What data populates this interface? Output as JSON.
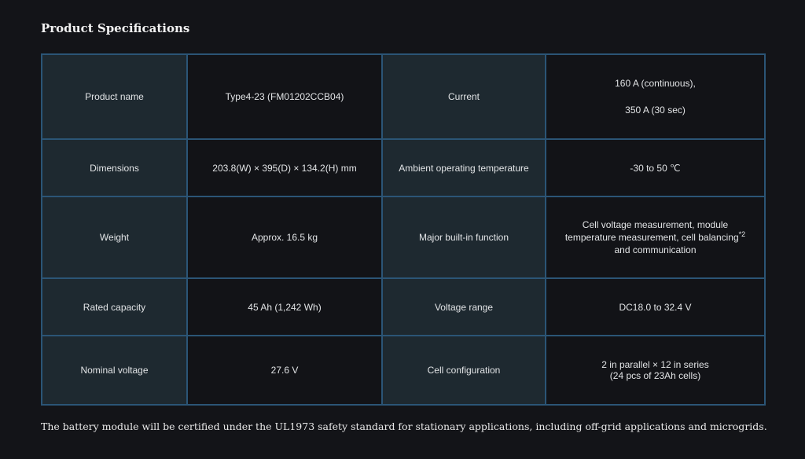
{
  "title": "Product Specifications",
  "rows": [
    {
      "l1": "Product name",
      "v1": "Type4-23 (FM01202CCB04)",
      "l2": "Current",
      "v2a": "160 A (continuous),",
      "v2b": "350 A (30 sec)"
    },
    {
      "l1": "Dimensions",
      "v1": "203.8(W) × 395(D) × 134.2(H) mm",
      "l2": "Ambient operating temperature",
      "v2": "-30 to 50 ℃"
    },
    {
      "l1": "Weight",
      "v1": "Approx. 16.5 kg",
      "l2": "Major built-in function",
      "v2a": "Cell voltage measurement, module temperature measurement, cell balancing",
      "v2sup": "*2",
      "v2b": "and communication"
    },
    {
      "l1": "Rated capacity",
      "v1": "45 Ah (1,242 Wh)",
      "l2": "Voltage range",
      "v2": "DC18.0 to 32.4 V"
    },
    {
      "l1": "Nominal voltage",
      "v1": "27.6 V",
      "l2": "Cell configuration",
      "v2a": "2 in parallel × 12 in series",
      "v2b": "(24 pcs of 23Ah cells)"
    }
  ],
  "footnote": "The battery module will be certified under the UL1973 safety standard for stationary applications, including off-grid applications and microgrids."
}
